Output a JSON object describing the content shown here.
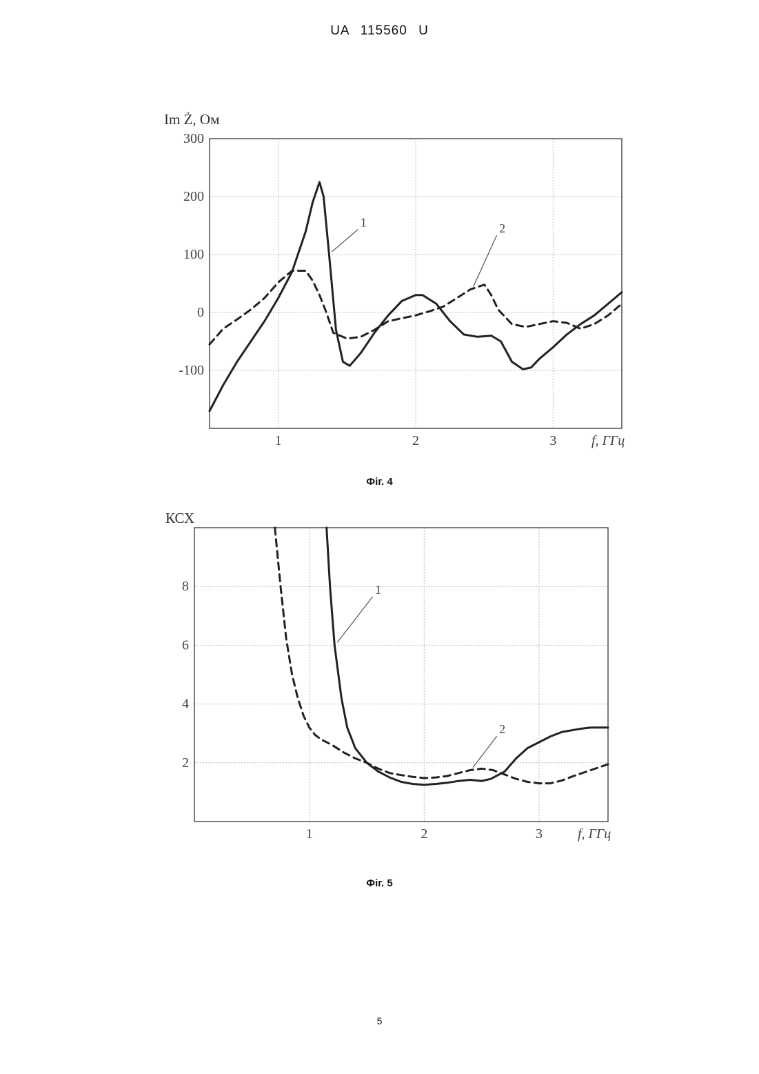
{
  "header": {
    "text": "UA   115560   U"
  },
  "page_number": "5",
  "colors": {
    "line": "#222222",
    "grid": "#bbbbbb",
    "axis": "#333333"
  },
  "chart_data": [
    {
      "type": "line",
      "caption": "Фіг. 4",
      "ylabel": "Im Ż, Ом",
      "xlabel": "f, ГГц",
      "xlim": [
        0.5,
        3.5
      ],
      "ylim": [
        -200,
        300
      ],
      "xticks": [
        1,
        2,
        3
      ],
      "yticks": [
        -100,
        0,
        100,
        200,
        300
      ],
      "xtick_labels": [
        "1",
        "2",
        "3"
      ],
      "ytick_labels": [
        "-100",
        "0",
        "100",
        "200",
        "300"
      ],
      "grid": true,
      "series": [
        {
          "name": "1",
          "style": "solid",
          "x": [
            0.5,
            0.6,
            0.7,
            0.8,
            0.9,
            1.0,
            1.1,
            1.2,
            1.25,
            1.3,
            1.33,
            1.37,
            1.42,
            1.47,
            1.52,
            1.6,
            1.7,
            1.8,
            1.9,
            2.0,
            2.05,
            2.15,
            2.25,
            2.35,
            2.45,
            2.55,
            2.62,
            2.7,
            2.78,
            2.84,
            2.9,
            3.0,
            3.1,
            3.2,
            3.3,
            3.4,
            3.5
          ],
          "y": [
            -170,
            -125,
            -85,
            -50,
            -15,
            25,
            70,
            140,
            190,
            225,
            200,
            100,
            -30,
            -85,
            -92,
            -70,
            -35,
            -5,
            20,
            30,
            30,
            15,
            -15,
            -38,
            -42,
            -40,
            -50,
            -85,
            -98,
            -95,
            -80,
            -60,
            -38,
            -20,
            -5,
            15,
            35
          ]
        },
        {
          "name": "2",
          "style": "dashed",
          "x": [
            0.5,
            0.6,
            0.7,
            0.8,
            0.9,
            1.0,
            1.1,
            1.2,
            1.25,
            1.3,
            1.35,
            1.4,
            1.5,
            1.6,
            1.7,
            1.8,
            1.9,
            2.0,
            2.1,
            2.2,
            2.3,
            2.4,
            2.5,
            2.55,
            2.6,
            2.7,
            2.8,
            2.9,
            3.0,
            3.1,
            3.2,
            3.3,
            3.4,
            3.5
          ],
          "y": [
            -55,
            -28,
            -12,
            5,
            25,
            52,
            72,
            72,
            55,
            30,
            0,
            -35,
            -45,
            -42,
            -30,
            -15,
            -10,
            -5,
            2,
            10,
            25,
            40,
            48,
            30,
            5,
            -20,
            -25,
            -20,
            -15,
            -18,
            -28,
            -20,
            -5,
            15
          ]
        }
      ],
      "annotations": [
        {
          "text": "1",
          "x": 1.62,
          "y": 148
        },
        {
          "text": "2",
          "x": 2.63,
          "y": 138
        }
      ]
    },
    {
      "type": "line",
      "caption": "Фіг. 5",
      "ylabel": "КСХ",
      "xlabel": "f, ГГц",
      "xlim": [
        0,
        3.6
      ],
      "ylim": [
        0,
        10
      ],
      "xticks": [
        1,
        2,
        3
      ],
      "yticks": [
        2,
        4,
        6,
        8
      ],
      "xtick_labels": [
        "1",
        "2",
        "3"
      ],
      "ytick_labels": [
        "2",
        "4",
        "6",
        "8"
      ],
      "grid": true,
      "series": [
        {
          "name": "1",
          "style": "solid",
          "x": [
            1.15,
            1.18,
            1.22,
            1.28,
            1.33,
            1.4,
            1.5,
            1.6,
            1.7,
            1.8,
            1.9,
            2.0,
            2.1,
            2.2,
            2.3,
            2.4,
            2.5,
            2.58,
            2.7,
            2.8,
            2.9,
            3.0,
            3.1,
            3.2,
            3.35,
            3.45,
            3.6
          ],
          "y": [
            10,
            8.0,
            6.0,
            4.2,
            3.2,
            2.5,
            2.0,
            1.7,
            1.5,
            1.35,
            1.28,
            1.25,
            1.28,
            1.32,
            1.38,
            1.42,
            1.38,
            1.45,
            1.7,
            2.15,
            2.5,
            2.7,
            2.9,
            3.05,
            3.15,
            3.2,
            3.2
          ]
        },
        {
          "name": "2",
          "style": "dashed",
          "x": [
            0.7,
            0.75,
            0.8,
            0.85,
            0.9,
            0.95,
            1.0,
            1.05,
            1.1,
            1.2,
            1.3,
            1.4,
            1.5,
            1.6,
            1.7,
            1.8,
            1.9,
            2.0,
            2.1,
            2.2,
            2.3,
            2.4,
            2.5,
            2.6,
            2.7,
            2.8,
            2.9,
            3.0,
            3.1,
            3.2,
            3.3,
            3.45,
            3.6
          ],
          "y": [
            10,
            8.0,
            6.2,
            5.0,
            4.2,
            3.6,
            3.2,
            2.95,
            2.8,
            2.6,
            2.35,
            2.15,
            2.0,
            1.8,
            1.65,
            1.58,
            1.52,
            1.48,
            1.5,
            1.55,
            1.65,
            1.75,
            1.8,
            1.75,
            1.6,
            1.45,
            1.35,
            1.3,
            1.3,
            1.4,
            1.55,
            1.75,
            1.95
          ]
        }
      ],
      "annotations": [
        {
          "text": "1",
          "x": 1.6,
          "y": 7.75
        },
        {
          "text": "2",
          "x": 2.68,
          "y": 3.0
        }
      ]
    }
  ]
}
